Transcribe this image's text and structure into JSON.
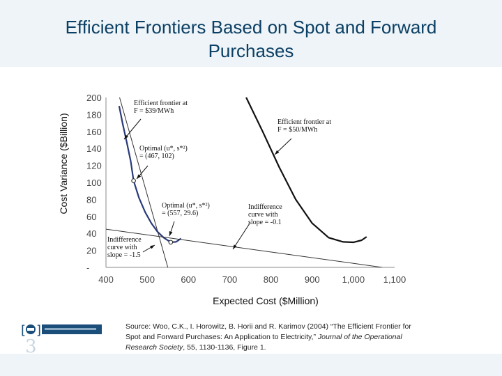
{
  "slide": {
    "title_line1": "Efficient Frontiers Based on Spot and Forward",
    "title_line2": "Purchases"
  },
  "chart_data": {
    "type": "line",
    "xlabel": "Expected Cost ($Million)",
    "ylabel": "Cost Variance  ($Billion)",
    "xlim": [
      400,
      1100
    ],
    "ylim": [
      0,
      200
    ],
    "x_ticks": [
      "400",
      "500",
      "600",
      "700",
      "800",
      "900",
      "1,000",
      "1,100"
    ],
    "y_ticks": [
      "-",
      "20",
      "40",
      "60",
      "80",
      "100",
      "120",
      "140",
      "160",
      "180",
      "200"
    ],
    "grid": false,
    "series": [
      {
        "name": "Efficient frontier at F = $39/MWh",
        "points": [
          [
            432,
            190
          ],
          [
            440,
            170
          ],
          [
            450,
            148
          ],
          [
            460,
            125
          ],
          [
            467,
            102
          ],
          [
            480,
            82
          ],
          [
            495,
            65
          ],
          [
            510,
            52
          ],
          [
            525,
            42
          ],
          [
            540,
            35
          ],
          [
            557,
            29.6
          ],
          [
            570,
            30
          ],
          [
            582,
            34
          ]
        ]
      },
      {
        "name": "Efficient frontier at F = $50/MWh",
        "points": [
          [
            740,
            200
          ],
          [
            780,
            160
          ],
          [
            820,
            118
          ],
          [
            860,
            80
          ],
          [
            900,
            52
          ],
          [
            940,
            35
          ],
          [
            975,
            30
          ],
          [
            1000,
            29.5
          ],
          [
            1020,
            32
          ],
          [
            1032,
            36
          ]
        ]
      },
      {
        "name": "Indifference curve with slope = -1.5",
        "points": [
          [
            433,
            200
          ],
          [
            550,
            0
          ]
        ]
      },
      {
        "name": "Indifference curve with slope = -0.1",
        "points": [
          [
            400,
            45
          ],
          [
            1070,
            0
          ]
        ]
      }
    ],
    "optimal_points": [
      {
        "x": 467,
        "y": 102,
        "label_line1": "Optimal (u*, s*²)",
        "label_line2": "= (467, 102)"
      },
      {
        "x": 557,
        "y": 29.6,
        "label_line1": "Optimal (u*, s*²)",
        "label_line2": "= (557, 29.6)"
      }
    ],
    "annotations": [
      {
        "lines": [
          "Efficient frontier at",
          "F = $39/MWh"
        ]
      },
      {
        "lines": [
          "Efficient frontier at",
          "F = $50/MWh"
        ]
      },
      {
        "lines": [
          "Indifference",
          "curve with",
          "slope = -0.1"
        ]
      },
      {
        "lines": [
          "Indifference",
          "curve with",
          "slope = -1.5"
        ]
      }
    ]
  },
  "source": {
    "line1": "Source: Woo, C.K., I. Horowitz, B. Horii and R. Karimov (2004) “The Efficient Frontier for",
    "line2_pre": "Spot and Forward Purchases: An Application to Electricity,” ",
    "line2_journal": "Journal of the Operational",
    "line3_journal": "Research Society",
    "line3_post": ", 55, 1130-1136, Figure 1."
  }
}
